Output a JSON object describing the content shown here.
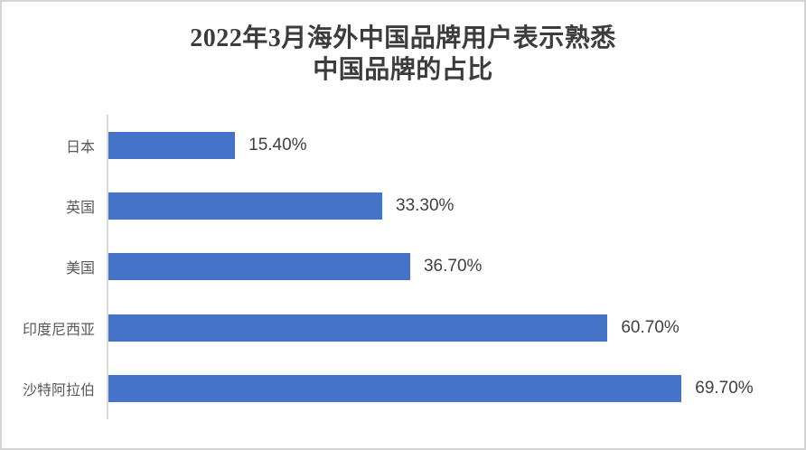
{
  "panel": {
    "background": "#ffffff",
    "border_color": "#d4d4d4"
  },
  "chart_data": {
    "type": "bar",
    "orientation": "horizontal",
    "title": "2022年3月海外中国品牌用户表示熟悉中国品牌的占比",
    "title_lines": [
      "2022年3月海外中国品牌用户表示熟悉",
      "中国品牌的占比"
    ],
    "categories": [
      "日本",
      "英国",
      "美国",
      "印度尼西亚",
      "沙特阿拉伯"
    ],
    "values": [
      15.4,
      33.3,
      36.7,
      60.7,
      69.7
    ],
    "value_labels": [
      "15.40%",
      "33.30%",
      "36.70%",
      "60.70%",
      "69.70%"
    ],
    "xlabel": "",
    "ylabel": "",
    "xlim": [
      0,
      80
    ],
    "grid": false,
    "legend": false,
    "bar_color": "#4573c7",
    "axis_color": "#d9d9d9",
    "title_color": "#3c3c3c",
    "category_label_color": "#595959",
    "value_label_color": "#404040"
  }
}
